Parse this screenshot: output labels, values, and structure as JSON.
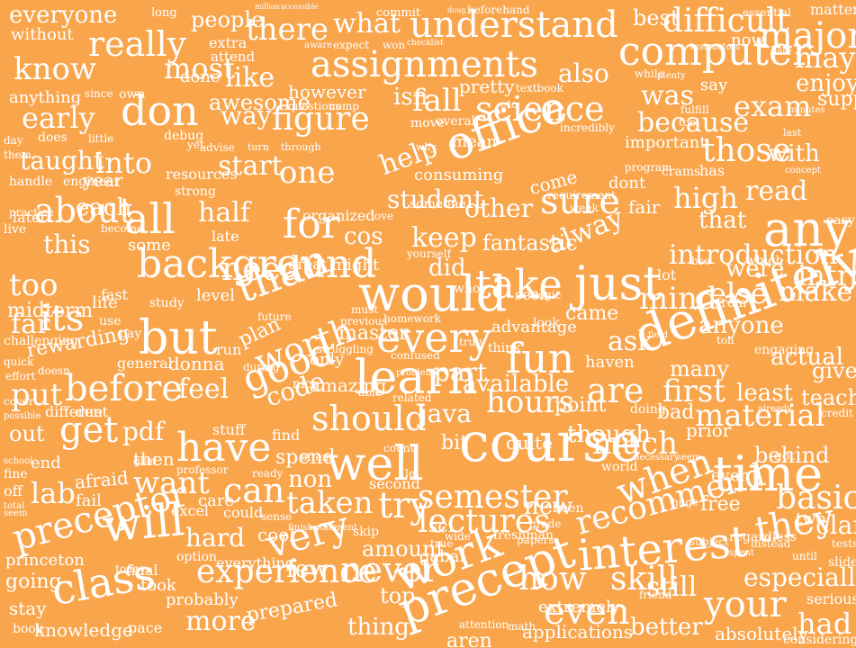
{
  "background_color": "#f9a54c",
  "text_color": "#ffffff",
  "words": [
    "everyone",
    "long",
    "people",
    "million",
    "accessible",
    "commit",
    "doug",
    "beforehand",
    "best",
    "difficult",
    "essential",
    "matter",
    "without",
    "really",
    "there",
    "what",
    "understand",
    "computer",
    "major",
    "may",
    "know",
    "most",
    "extra",
    "attend",
    "aware",
    "expect",
    "won",
    "checklist",
    "instructors",
    "now",
    "date",
    "own",
    "done",
    "like",
    "assignments",
    "also",
    "was",
    "enjoy",
    "anything",
    "since",
    "awesome",
    "however",
    "pretty",
    "textbook",
    "while",
    "plenty",
    "say",
    "early",
    "don",
    "way",
    "isn",
    "fall",
    "exam",
    "support",
    "day",
    "does",
    "little",
    "debug",
    "questions",
    "comp",
    "move",
    "overall",
    "etc",
    "incredibly",
    "fulfill",
    "tool",
    "last",
    "minutes",
    "figure",
    "science",
    "because",
    "them",
    "yet",
    "advise",
    "turn",
    "through",
    "why",
    "mean",
    "important",
    "those",
    "with",
    "taught",
    "into",
    "start",
    "one",
    "help",
    "office",
    "program",
    "crams",
    "has",
    "concept",
    "handle",
    "engineer",
    "year",
    "resources",
    "strong",
    "consuming",
    "come",
    "requirement",
    "dont",
    "practice",
    "later",
    "each",
    "half",
    "student",
    "other",
    "week",
    "fair",
    "high",
    "read",
    "about",
    "all",
    "for",
    "cos",
    "keep",
    "sure",
    "that",
    "easy",
    "live",
    "become",
    "late",
    "organized",
    "love",
    "someone",
    "fantastic",
    "alway",
    "introduction",
    "any",
    "this",
    "some",
    "background",
    "great",
    "might",
    "yourself",
    "did",
    "who",
    "bse",
    "were",
    "intro",
    "too",
    "need",
    "than",
    "would",
    "take",
    "just",
    "lot",
    "which",
    "else",
    "make",
    "fast",
    "life",
    "study",
    "level",
    "must",
    "seek",
    "logic",
    "mind",
    "from",
    "midterm",
    "far",
    "its",
    "use",
    "future",
    "previous",
    "homework",
    "came",
    "anyone",
    "challenging",
    "pay",
    "plan",
    "struggling",
    "master",
    "every",
    "think",
    "advantage",
    "look",
    "field",
    "ton",
    "engaging",
    "rewarding",
    "but",
    "run",
    "worth",
    "truly",
    "fun",
    "ask",
    "definitely",
    "actual",
    "quick",
    "doesn",
    "general",
    "donna",
    "during",
    "only",
    "confused",
    "part",
    "haven",
    "many",
    "give",
    "effort",
    "put",
    "before",
    "feel",
    "good",
    "amazing",
    "learn",
    "available",
    "are",
    "first",
    "least",
    "teach",
    "possible",
    "problem",
    "nice",
    "able",
    "related",
    "hours",
    "point",
    "doing",
    "bad",
    "material",
    "cover",
    "different",
    "due",
    "code",
    "should",
    "java",
    "prior",
    "already",
    "credit",
    "out",
    "get",
    "pdf",
    "stuff",
    "find",
    "quite",
    "though",
    "much",
    "behind",
    "end",
    "then",
    "have",
    "often",
    "spend",
    "count",
    "bit",
    "world",
    "necessary",
    "seem",
    "ever",
    "got",
    "fine",
    "afraid",
    "want",
    "professor",
    "ready",
    "non",
    "well",
    "course",
    "time",
    "school",
    "glad",
    "can",
    "second",
    "let",
    "semester",
    "when",
    "basic",
    "off",
    "lab",
    "care",
    "taken",
    "try",
    "sci",
    "new",
    "been",
    "huge",
    "free",
    "total",
    "fail",
    "excel",
    "could",
    "sense",
    "cool",
    "finish",
    "comment",
    "skip",
    "lectures",
    "grade",
    "recommend",
    "they",
    "clark",
    "two",
    "seem",
    "will",
    "hard",
    "very",
    "amount",
    "true",
    "freshman",
    "papers",
    "subject",
    "regardless",
    "instead",
    "tests",
    "preceptor",
    "option",
    "everything",
    "few",
    "never",
    "gabai",
    "wide",
    "interest",
    "spent",
    "until",
    "slides",
    "princeton",
    "going",
    "today",
    "final",
    "experience",
    "work",
    "how",
    "skill",
    "still",
    "especially",
    "class",
    "took",
    "probably",
    "top",
    "precept",
    "extremely",
    "friend",
    "serious",
    "stay",
    "book",
    "knowledge",
    "pace",
    "more",
    "prepared",
    "thing",
    "aren",
    "attention",
    "math",
    "applications",
    "even",
    "better",
    "absolutely",
    "your",
    "had",
    "considering"
  ]
}
